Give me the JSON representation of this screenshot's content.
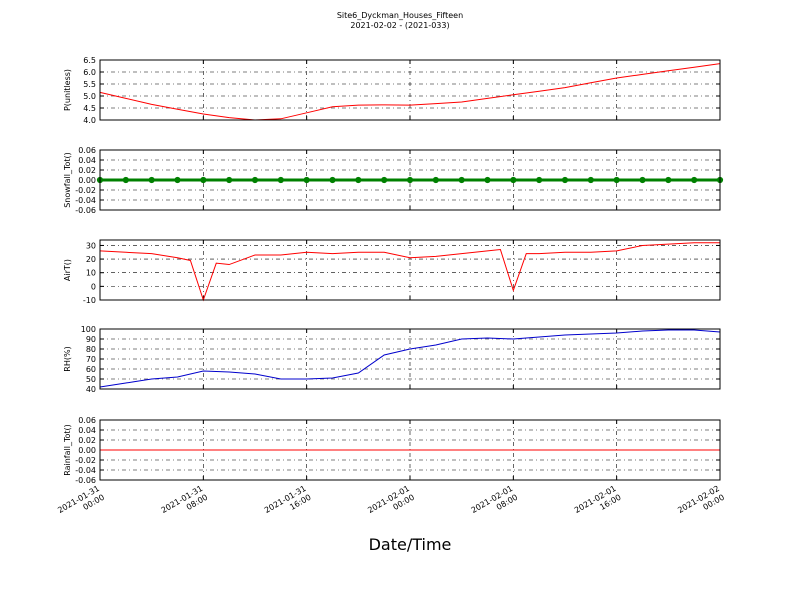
{
  "title": "Site6_Dyckman_Houses_Fifteen",
  "subtitle": "2021-02-02 - (2021-033)",
  "xlabel": "Date/Time",
  "xlim": [
    "2021-01-31 00:00",
    "2021-02-02 00:00"
  ],
  "xticks": [
    "2021-01-31 00:00",
    "2021-01-31 08:00",
    "2021-01-31 16:00",
    "2021-02-01 00:00",
    "2021-02-01 08:00",
    "2021-02-01 16:00",
    "2021-02-02 00:00"
  ],
  "chart_data": [
    {
      "type": "line",
      "ylabel": "P(unitless)",
      "ylim": [
        4.0,
        6.5
      ],
      "yticks": [
        {
          "value": 4.0,
          "label": "4.0"
        },
        4.5,
        {
          "value": 5.0,
          "label": "5.0"
        },
        5.5,
        {
          "value": 6.0,
          "label": "6.0"
        },
        6.5
      ],
      "grid": true,
      "x": [
        "2021-01-31 00:00",
        "2021-01-31 02:00",
        "2021-01-31 04:00",
        "2021-01-31 06:00",
        "2021-01-31 08:00",
        "2021-01-31 10:00",
        "2021-01-31 12:00",
        "2021-01-31 14:00",
        "2021-01-31 16:00",
        "2021-01-31 18:00",
        "2021-01-31 20:00",
        "2021-01-31 22:00",
        "2021-02-01 00:00",
        "2021-02-01 02:00",
        "2021-02-01 04:00",
        "2021-02-01 06:00",
        "2021-02-01 08:00",
        "2021-02-01 10:00",
        "2021-02-01 12:00",
        "2021-02-01 14:00",
        "2021-02-01 16:00",
        "2021-02-01 18:00",
        "2021-02-01 20:00",
        "2021-02-01 22:00",
        "2021-02-02 00:00"
      ],
      "series": [
        {
          "color": "#ff0000",
          "marker": false,
          "values": [
            5.15,
            4.9,
            4.65,
            4.45,
            4.25,
            4.1,
            4.0,
            4.05,
            4.3,
            4.55,
            4.62,
            4.63,
            4.62,
            4.68,
            4.75,
            4.9,
            5.05,
            5.2,
            5.35,
            5.55,
            5.75,
            5.9,
            6.05,
            6.2,
            6.35
          ]
        }
      ]
    },
    {
      "type": "line",
      "ylabel": "Snowfall_Tot()",
      "ylim": [
        -0.06,
        0.06
      ],
      "yticks": [
        -0.06,
        -0.04,
        -0.02,
        {
          "value": 0,
          "label": "0.00"
        },
        0.02,
        0.04,
        0.06
      ],
      "grid": true,
      "x": [
        "2021-01-31 00:00",
        "2021-01-31 02:00",
        "2021-01-31 04:00",
        "2021-01-31 06:00",
        "2021-01-31 08:00",
        "2021-01-31 10:00",
        "2021-01-31 12:00",
        "2021-01-31 14:00",
        "2021-01-31 16:00",
        "2021-01-31 18:00",
        "2021-01-31 20:00",
        "2021-01-31 22:00",
        "2021-02-01 00:00",
        "2021-02-01 02:00",
        "2021-02-01 04:00",
        "2021-02-01 06:00",
        "2021-02-01 08:00",
        "2021-02-01 10:00",
        "2021-02-01 12:00",
        "2021-02-01 14:00",
        "2021-02-01 16:00",
        "2021-02-01 18:00",
        "2021-02-01 20:00",
        "2021-02-01 22:00",
        "2021-02-02 00:00"
      ],
      "series": [
        {
          "color": "#008000",
          "marker": true,
          "values": [
            0,
            0,
            0,
            0,
            0,
            0,
            0,
            0,
            0,
            0,
            0,
            0,
            0,
            0,
            0,
            0,
            0,
            0,
            0,
            0,
            0,
            0,
            0,
            0,
            0
          ]
        }
      ]
    },
    {
      "type": "line",
      "ylabel": "AirT()",
      "ylim": [
        -10,
        34
      ],
      "yticks": [
        -10,
        0,
        10,
        20,
        30
      ],
      "grid": true,
      "x": [
        "2021-01-31 00:00",
        "2021-01-31 02:00",
        "2021-01-31 04:00",
        "2021-01-31 06:00",
        "2021-01-31 07:00",
        "2021-01-31 08:00",
        "2021-01-31 09:00",
        "2021-01-31 10:00",
        "2021-01-31 12:00",
        "2021-01-31 14:00",
        "2021-01-31 16:00",
        "2021-01-31 18:00",
        "2021-01-31 20:00",
        "2021-01-31 22:00",
        "2021-02-01 00:00",
        "2021-02-01 02:00",
        "2021-02-01 04:00",
        "2021-02-01 06:00",
        "2021-02-01 07:00",
        "2021-02-01 08:00",
        "2021-02-01 09:00",
        "2021-02-01 10:00",
        "2021-02-01 12:00",
        "2021-02-01 14:00",
        "2021-02-01 16:00",
        "2021-02-01 18:00",
        "2021-02-01 20:00",
        "2021-02-01 22:00",
        "2021-02-02 00:00"
      ],
      "series": [
        {
          "color": "#ff0000",
          "marker": false,
          "values": [
            26,
            25,
            24,
            21,
            19,
            -10,
            17,
            16,
            23,
            23,
            25,
            24,
            25,
            25,
            21,
            22,
            24,
            26,
            27,
            -3,
            24,
            24,
            25,
            25,
            26,
            30,
            31,
            32,
            32
          ]
        }
      ]
    },
    {
      "type": "line",
      "ylabel": "RH(%)",
      "ylim": [
        40,
        100
      ],
      "yticks": [
        40,
        50,
        60,
        70,
        80,
        90,
        100
      ],
      "grid": true,
      "x": [
        "2021-01-31 00:00",
        "2021-01-31 02:00",
        "2021-01-31 04:00",
        "2021-01-31 06:00",
        "2021-01-31 08:00",
        "2021-01-31 10:00",
        "2021-01-31 12:00",
        "2021-01-31 14:00",
        "2021-01-31 16:00",
        "2021-01-31 18:00",
        "2021-01-31 20:00",
        "2021-01-31 22:00",
        "2021-02-01 00:00",
        "2021-02-01 02:00",
        "2021-02-01 04:00",
        "2021-02-01 06:00",
        "2021-02-01 08:00",
        "2021-02-01 10:00",
        "2021-02-01 12:00",
        "2021-02-01 14:00",
        "2021-02-01 16:00",
        "2021-02-01 18:00",
        "2021-02-01 20:00",
        "2021-02-01 22:00",
        "2021-02-02 00:00"
      ],
      "series": [
        {
          "color": "#0000cc",
          "marker": false,
          "values": [
            42,
            46,
            50,
            52,
            58,
            57,
            55,
            50,
            50,
            51,
            56,
            74,
            80,
            84,
            90,
            91,
            90,
            92,
            94,
            95,
            96,
            98,
            99,
            99,
            97
          ]
        }
      ]
    },
    {
      "type": "line",
      "ylabel": "Rainfall_Tot()",
      "ylim": [
        -0.06,
        0.06
      ],
      "yticks": [
        -0.06,
        -0.04,
        -0.02,
        {
          "value": 0,
          "label": "0.00"
        },
        0.02,
        0.04,
        0.06
      ],
      "grid": true,
      "x": [
        "2021-01-31 00:00",
        "2021-01-31 08:00",
        "2021-01-31 16:00",
        "2021-02-01 00:00",
        "2021-02-01 08:00",
        "2021-02-01 16:00",
        "2021-02-02 00:00"
      ],
      "series": [
        {
          "color": "#ff0000",
          "marker": false,
          "values": [
            0,
            0,
            0,
            0,
            0,
            0,
            0
          ]
        }
      ]
    }
  ]
}
